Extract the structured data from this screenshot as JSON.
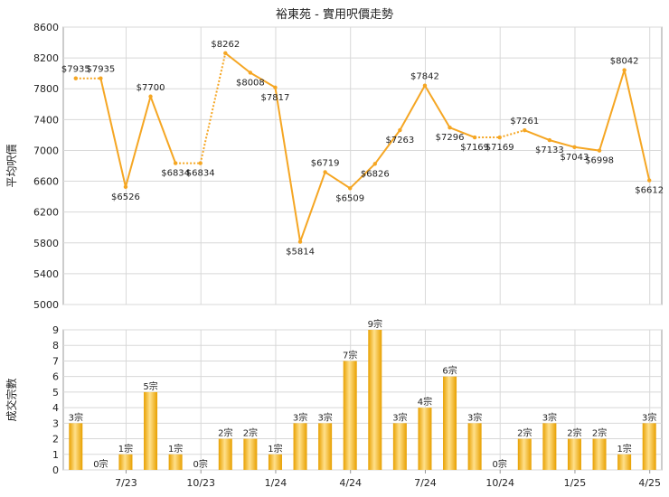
{
  "title": "裕東苑 - 實用呎價走勢",
  "colors": {
    "line": "#f5a623",
    "bar_light": "#ffe08a",
    "bar_dark": "#e8a000",
    "grid": "#d8d8d8",
    "plot_bg": "#ffffff",
    "axis": "#999999"
  },
  "chart_data": [
    {
      "type": "line",
      "ylabel": "平均呎價",
      "ylim": [
        5000,
        8600
      ],
      "yticks": [
        5000,
        5400,
        5800,
        6200,
        6600,
        7000,
        7400,
        7800,
        8200,
        8600
      ],
      "grid": true,
      "x_tick_labels": [
        "7/23",
        "10/23",
        "1/24",
        "4/24",
        "7/24",
        "10/24",
        "1/25",
        "4/25"
      ],
      "points": [
        {
          "value": 7935,
          "label": "$7935",
          "estimated": true
        },
        {
          "value": 7935,
          "label": "$7935",
          "estimated": false
        },
        {
          "value": 6526,
          "label": "$6526",
          "estimated": false
        },
        {
          "value": 7700,
          "label": "$7700",
          "estimated": false
        },
        {
          "value": 6834,
          "label": "$6834",
          "estimated": false
        },
        {
          "value": 6834,
          "label": "$6834",
          "estimated": true
        },
        {
          "value": 8262,
          "label": "$8262",
          "estimated": false
        },
        {
          "value": 8008,
          "label": "$8008",
          "estimated": false
        },
        {
          "value": 7817,
          "label": "$7817",
          "estimated": false
        },
        {
          "value": 5814,
          "label": "$5814",
          "estimated": false
        },
        {
          "value": 6719,
          "label": "$6719",
          "estimated": false
        },
        {
          "value": 6509,
          "label": "$6509",
          "estimated": false
        },
        {
          "value": 6826,
          "label": "$6826",
          "estimated": false
        },
        {
          "value": 7263,
          "label": "$7263",
          "estimated": false
        },
        {
          "value": 7842,
          "label": "$7842",
          "estimated": false
        },
        {
          "value": 7296,
          "label": "$7296",
          "estimated": false
        },
        {
          "value": 7169,
          "label": "$7169",
          "estimated": false
        },
        {
          "value": 7169,
          "label": "$7169",
          "estimated": true
        },
        {
          "value": 7261,
          "label": "$7261",
          "estimated": false
        },
        {
          "value": 7133,
          "label": "$7133",
          "estimated": false
        },
        {
          "value": 7043,
          "label": "$7043",
          "estimated": false
        },
        {
          "value": 6998,
          "label": "$6998",
          "estimated": false
        },
        {
          "value": 8042,
          "label": "$8042",
          "estimated": false
        },
        {
          "value": 6612,
          "label": "$6612",
          "estimated": false
        }
      ]
    },
    {
      "type": "bar",
      "ylabel": "成交宗數",
      "ylim": [
        0,
        9
      ],
      "yticks": [
        0,
        1,
        2,
        3,
        4,
        5,
        6,
        7,
        8,
        9
      ],
      "grid": true,
      "x_tick_labels": [
        "7/23",
        "10/23",
        "1/24",
        "4/24",
        "7/24",
        "10/24",
        "1/25",
        "4/25"
      ],
      "values": [
        3,
        0,
        1,
        5,
        1,
        0,
        2,
        2,
        1,
        3,
        3,
        7,
        9,
        3,
        4,
        6,
        3,
        0,
        2,
        3,
        2,
        2,
        1,
        3
      ],
      "labels": [
        "3宗",
        "0宗",
        "1宗",
        "5宗",
        "1宗",
        "0宗",
        "2宗",
        "2宗",
        "1宗",
        "3宗",
        "3宗",
        "7宗",
        "9宗",
        "3宗",
        "4宗",
        "6宗",
        "3宗",
        "0宗",
        "2宗",
        "3宗",
        "2宗",
        "2宗",
        "1宗",
        "3宗"
      ]
    }
  ]
}
